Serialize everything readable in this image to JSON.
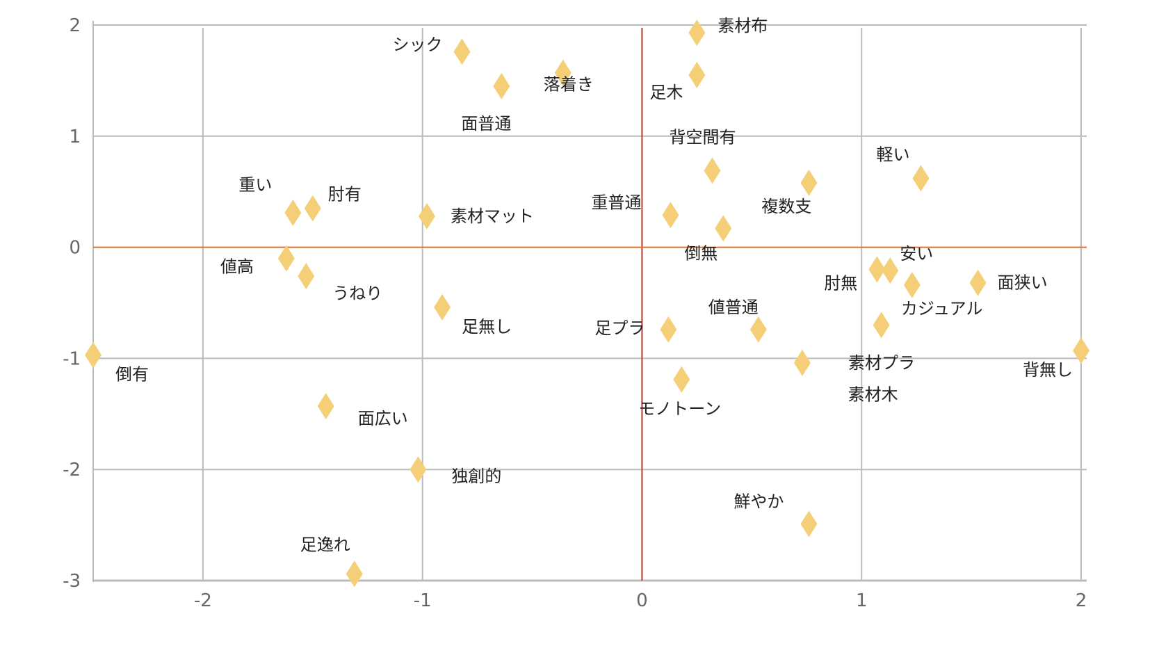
{
  "chart_data": {
    "type": "scatter",
    "title": "",
    "xlabel": "",
    "ylabel": "",
    "xlim": [
      -2.5,
      2
    ],
    "ylim": [
      -3,
      2
    ],
    "x_ticks": [
      "-2",
      "-1",
      "0",
      "1",
      "2"
    ],
    "y_ticks": [
      "2",
      "1",
      "0",
      "-1",
      "-2",
      "-3"
    ],
    "grid": true,
    "legend": "none",
    "colors": {
      "marker": "#F5CF78",
      "grid": "#BBBBBB",
      "x_zero_line": "#C0392B",
      "y_zero_line": "#E0702E",
      "tick_text": "#666666",
      "label_text": "#222222"
    },
    "points": [
      {
        "label": "シック",
        "x": -0.82,
        "y": 1.76
      },
      {
        "label": "面普通",
        "x": -0.64,
        "y": 1.45
      },
      {
        "label": "落着き",
        "x": -0.36,
        "y": 1.57
      },
      {
        "label": "素材布",
        "x": 0.25,
        "y": 1.93
      },
      {
        "label": "足木",
        "x": 0.25,
        "y": 1.55
      },
      {
        "label": "背空間有",
        "x": 0.32,
        "y": 0.69
      },
      {
        "label": "軽い",
        "x": 1.27,
        "y": 0.62
      },
      {
        "label": "複数支",
        "x": 0.76,
        "y": 0.58
      },
      {
        "label": "重い",
        "x": -1.59,
        "y": 0.31
      },
      {
        "label": "肘有",
        "x": -1.5,
        "y": 0.35
      },
      {
        "label": "素材マット",
        "x": -0.98,
        "y": 0.28
      },
      {
        "label": "重普通",
        "x": 0.13,
        "y": 0.29
      },
      {
        "label": "倒無",
        "x": 0.37,
        "y": 0.17
      },
      {
        "label": "値高",
        "x": -1.62,
        "y": -0.1
      },
      {
        "label": "うねり",
        "x": -1.53,
        "y": -0.26
      },
      {
        "label": "安い",
        "x": 1.13,
        "y": -0.21
      },
      {
        "label": "肘無",
        "x": 1.07,
        "y": -0.2
      },
      {
        "label": "カジュアル",
        "x": 1.23,
        "y": -0.34
      },
      {
        "label": "面狭い",
        "x": 1.53,
        "y": -0.32
      },
      {
        "label": "足無し",
        "x": -0.91,
        "y": -0.54
      },
      {
        "label": "足プラ",
        "x": 0.12,
        "y": -0.74
      },
      {
        "label": "値普通",
        "x": 0.53,
        "y": -0.74
      },
      {
        "label": "倒有",
        "x": -2.5,
        "y": -0.97
      },
      {
        "label": "素材プラ",
        "x": 0.73,
        "y": -1.04
      },
      {
        "label": "背無し",
        "x": 2.0,
        "y": -0.93
      },
      {
        "label": "素材木",
        "x": 1.09,
        "y": -0.7
      },
      {
        "label": "モノトーン",
        "x": 0.18,
        "y": -1.19
      },
      {
        "label": "面広い",
        "x": -1.44,
        "y": -1.43
      },
      {
        "label": "独創的",
        "x": -1.02,
        "y": -2.0
      },
      {
        "label": "鮮やか",
        "x": 0.76,
        "y": -2.49
      },
      {
        "label": "足逸れ",
        "x": -1.31,
        "y": -2.94
      }
    ]
  }
}
